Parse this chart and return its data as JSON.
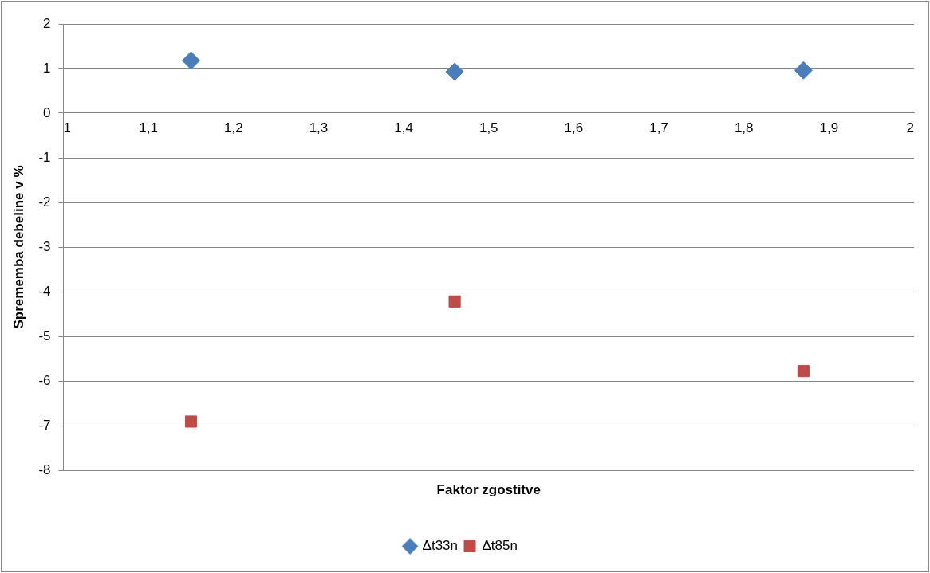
{
  "chart_data": {
    "type": "scatter",
    "xlabel": "Faktor zgostitve",
    "ylabel": "Sprememba debeline v %",
    "x": [
      1.15,
      1.46,
      1.87
    ],
    "series": [
      {
        "name": "Δt33n",
        "color": "#4a7ebb",
        "marker": "diamond",
        "values": [
          1.18,
          0.93,
          0.96
        ]
      },
      {
        "name": "Δt85n",
        "color": "#be4b48",
        "marker": "square",
        "values": [
          -6.91,
          -4.22,
          -5.78
        ]
      }
    ],
    "xlim": [
      1,
      2
    ],
    "xticks": [
      {
        "value": 1,
        "label": "1"
      },
      {
        "value": 1.1,
        "label": "1,1"
      },
      {
        "value": 1.2,
        "label": "1,2"
      },
      {
        "value": 1.3,
        "label": "1,3"
      },
      {
        "value": 1.4,
        "label": "1,4"
      },
      {
        "value": 1.5,
        "label": "1,5"
      },
      {
        "value": 1.6,
        "label": "1,6"
      },
      {
        "value": 1.7,
        "label": "1,7"
      },
      {
        "value": 1.8,
        "label": "1,8"
      },
      {
        "value": 1.9,
        "label": "1,9"
      },
      {
        "value": 2,
        "label": "2"
      }
    ],
    "ylim": [
      -8,
      2
    ],
    "yticks": [
      -8,
      -7,
      -6,
      -5,
      -4,
      -3,
      -2,
      -1,
      0,
      1,
      2
    ],
    "grid": "y",
    "legend": "bottom"
  }
}
